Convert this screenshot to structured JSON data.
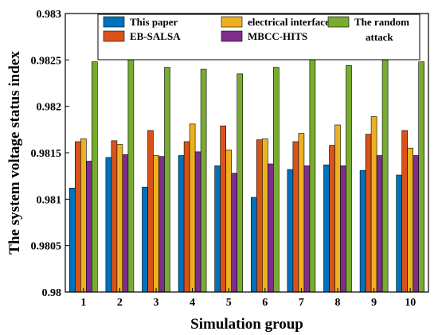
{
  "chart_data": {
    "type": "bar",
    "xlabel": "Simulation group",
    "ylabel": "The system voltage status index",
    "categories": [
      "1",
      "2",
      "3",
      "4",
      "5",
      "6",
      "7",
      "8",
      "9",
      "10"
    ],
    "ylim": [
      0.98,
      0.983
    ],
    "yticks": [
      "0.98",
      "0.9805",
      "0.981",
      "0.9815",
      "0.982",
      "0.9825",
      "0.983"
    ],
    "legend_position": "top",
    "grid": false,
    "series": [
      {
        "name": "This paper",
        "color": "#0072BD",
        "values": [
          0.98112,
          0.98145,
          0.98113,
          0.98147,
          0.98136,
          0.98102,
          0.98132,
          0.98137,
          0.98131,
          0.98126
        ]
      },
      {
        "name": "EB-SALSA",
        "color": "#D95319",
        "values": [
          0.98162,
          0.98163,
          0.98174,
          0.98162,
          0.98179,
          0.98164,
          0.98162,
          0.98158,
          0.9817,
          0.98174
        ]
      },
      {
        "name": "electrical interface",
        "color": "#EDB120",
        "values": [
          0.98165,
          0.98159,
          0.98147,
          0.98181,
          0.98153,
          0.98165,
          0.98171,
          0.9818,
          0.98189,
          0.98155
        ]
      },
      {
        "name": "MBCC-HITS",
        "color": "#7E2F8E",
        "values": [
          0.98141,
          0.98148,
          0.98146,
          0.98151,
          0.98128,
          0.98138,
          0.98136,
          0.98136,
          0.98147,
          0.98147
        ]
      },
      {
        "name": "The random attack",
        "color": "#77AC30",
        "values": [
          0.98248,
          0.98258,
          0.98242,
          0.9824,
          0.98235,
          0.98242,
          0.98256,
          0.98244,
          0.9825,
          0.98248
        ]
      }
    ]
  }
}
